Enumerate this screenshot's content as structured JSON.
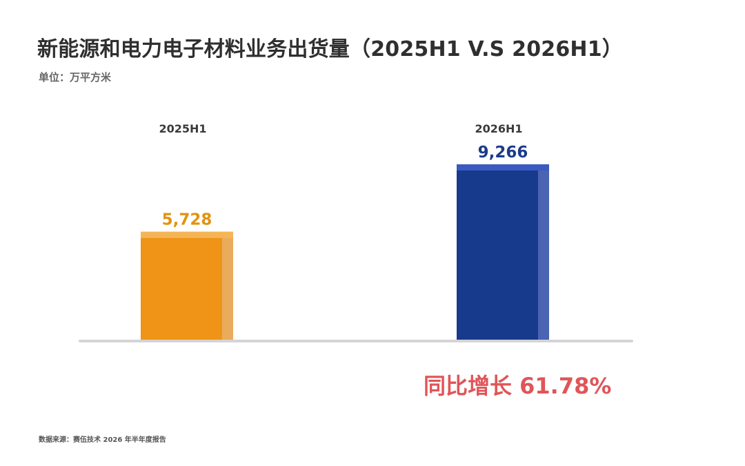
{
  "title": "新能源和电力电子材料业务出货量（2025H1 V.S 2026H1）",
  "unit": "单位：万平方米",
  "growth_label": "同比增长 61.78%",
  "source": "数据来源：赛伍技术 2026 年半年度报告",
  "colors": {
    "bar_2025": "#ef9416",
    "bar_2025_side": "#e9ac5c",
    "bar_2025_top": "#f6b555",
    "bar_2026": "#173a8c",
    "bar_2026_side": "#4a63b2",
    "bar_2026_top": "#3a5bbf",
    "label_2025": "#e3920f",
    "label_2026": "#1b3c8a",
    "baseline": "#d4d4d4",
    "growth": "#e05558"
  },
  "chart_data": {
    "type": "bar",
    "categories": [
      "2025H1",
      "2026H1"
    ],
    "values": [
      5728,
      9266
    ],
    "value_labels": [
      "5,728",
      "9,266"
    ],
    "title": "新能源和电力电子材料业务出货量（2025H1 V.S 2026H1）",
    "ylabel": "单位：万平方米",
    "ylim": [
      0,
      11000
    ],
    "grid": false,
    "legend": "none"
  }
}
